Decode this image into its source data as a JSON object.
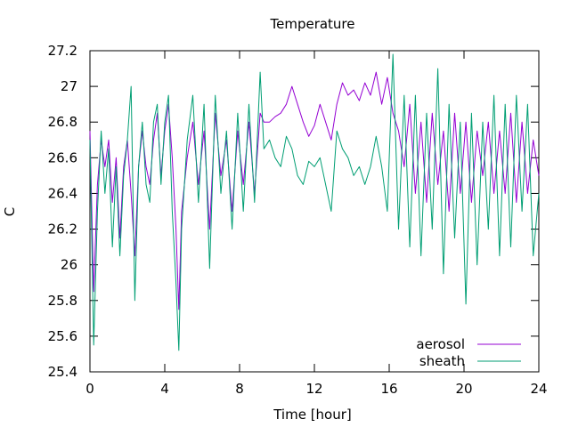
{
  "chart_data": {
    "type": "line",
    "title": "Temperature",
    "xlabel": "Time [hour]",
    "ylabel": "C",
    "xlim": [
      0,
      24
    ],
    "ylim": [
      25.4,
      27.2
    ],
    "xticks": [
      0,
      4,
      8,
      12,
      16,
      20,
      24
    ],
    "yticks": [
      25.4,
      25.6,
      25.8,
      26,
      26.2,
      26.4,
      26.6,
      26.8,
      27,
      27.2
    ],
    "grid": false,
    "legend_position": "bottom-right",
    "series": [
      {
        "name": "aerosol",
        "color": "#9400d3",
        "points": [
          [
            0,
            26.75
          ],
          [
            0.2,
            25.85
          ],
          [
            0.4,
            26.45
          ],
          [
            0.6,
            26.7
          ],
          [
            0.8,
            26.55
          ],
          [
            1.0,
            26.7
          ],
          [
            1.2,
            26.35
          ],
          [
            1.4,
            26.6
          ],
          [
            1.6,
            26.15
          ],
          [
            1.8,
            26.55
          ],
          [
            2.0,
            26.7
          ],
          [
            2.2,
            26.4
          ],
          [
            2.4,
            26.05
          ],
          [
            2.6,
            26.55
          ],
          [
            2.8,
            26.75
          ],
          [
            3.0,
            26.55
          ],
          [
            3.2,
            26.45
          ],
          [
            3.4,
            26.7
          ],
          [
            3.6,
            26.85
          ],
          [
            3.8,
            26.5
          ],
          [
            4.0,
            26.75
          ],
          [
            4.2,
            26.9
          ],
          [
            4.4,
            26.6
          ],
          [
            4.6,
            26.2
          ],
          [
            4.75,
            25.75
          ],
          [
            4.9,
            26.3
          ],
          [
            5.2,
            26.6
          ],
          [
            5.5,
            26.8
          ],
          [
            5.8,
            26.45
          ],
          [
            6.1,
            26.75
          ],
          [
            6.4,
            26.2
          ],
          [
            6.7,
            26.85
          ],
          [
            7.0,
            26.5
          ],
          [
            7.3,
            26.7
          ],
          [
            7.6,
            26.3
          ],
          [
            7.9,
            26.75
          ],
          [
            8.2,
            26.45
          ],
          [
            8.5,
            26.8
          ],
          [
            8.8,
            26.4
          ],
          [
            9.1,
            26.85
          ],
          [
            9.3,
            26.8
          ],
          [
            9.6,
            26.8
          ],
          [
            9.9,
            26.83
          ],
          [
            10.2,
            26.85
          ],
          [
            10.5,
            26.9
          ],
          [
            10.8,
            27.0
          ],
          [
            11.1,
            26.9
          ],
          [
            11.4,
            26.8
          ],
          [
            11.7,
            26.72
          ],
          [
            12.0,
            26.78
          ],
          [
            12.3,
            26.9
          ],
          [
            12.6,
            26.8
          ],
          [
            12.9,
            26.7
          ],
          [
            13.2,
            26.9
          ],
          [
            13.5,
            27.02
          ],
          [
            13.8,
            26.95
          ],
          [
            14.1,
            26.98
          ],
          [
            14.4,
            26.92
          ],
          [
            14.7,
            27.02
          ],
          [
            15.0,
            26.95
          ],
          [
            15.3,
            27.08
          ],
          [
            15.6,
            26.9
          ],
          [
            15.9,
            27.05
          ],
          [
            16.2,
            26.85
          ],
          [
            16.5,
            26.75
          ],
          [
            16.8,
            26.55
          ],
          [
            17.1,
            26.9
          ],
          [
            17.4,
            26.4
          ],
          [
            17.7,
            26.8
          ],
          [
            18.0,
            26.35
          ],
          [
            18.3,
            26.85
          ],
          [
            18.6,
            26.45
          ],
          [
            18.9,
            26.75
          ],
          [
            19.2,
            26.3
          ],
          [
            19.5,
            26.85
          ],
          [
            19.8,
            26.4
          ],
          [
            20.1,
            26.8
          ],
          [
            20.4,
            26.35
          ],
          [
            20.7,
            26.75
          ],
          [
            21.0,
            26.5
          ],
          [
            21.3,
            26.8
          ],
          [
            21.6,
            26.4
          ],
          [
            21.9,
            26.75
          ],
          [
            22.2,
            26.4
          ],
          [
            22.5,
            26.85
          ],
          [
            22.8,
            26.35
          ],
          [
            23.1,
            26.8
          ],
          [
            23.4,
            26.4
          ],
          [
            23.7,
            26.7
          ],
          [
            24.0,
            26.5
          ]
        ]
      },
      {
        "name": "sheath",
        "color": "#009e73",
        "points": [
          [
            0,
            26.7
          ],
          [
            0.2,
            25.55
          ],
          [
            0.4,
            26.3
          ],
          [
            0.6,
            26.75
          ],
          [
            0.8,
            26.4
          ],
          [
            1.0,
            26.65
          ],
          [
            1.2,
            26.1
          ],
          [
            1.4,
            26.55
          ],
          [
            1.6,
            26.05
          ],
          [
            1.8,
            26.5
          ],
          [
            2.0,
            26.7
          ],
          [
            2.2,
            27.0
          ],
          [
            2.4,
            25.8
          ],
          [
            2.6,
            26.55
          ],
          [
            2.8,
            26.8
          ],
          [
            3.0,
            26.45
          ],
          [
            3.2,
            26.35
          ],
          [
            3.4,
            26.8
          ],
          [
            3.6,
            26.9
          ],
          [
            3.8,
            26.45
          ],
          [
            4.0,
            26.8
          ],
          [
            4.2,
            26.95
          ],
          [
            4.4,
            26.3
          ],
          [
            4.6,
            25.9
          ],
          [
            4.75,
            25.52
          ],
          [
            4.9,
            26.2
          ],
          [
            5.2,
            26.7
          ],
          [
            5.5,
            26.95
          ],
          [
            5.8,
            26.35
          ],
          [
            6.1,
            26.9
          ],
          [
            6.4,
            25.98
          ],
          [
            6.7,
            26.95
          ],
          [
            7.0,
            26.4
          ],
          [
            7.3,
            26.75
          ],
          [
            7.6,
            26.2
          ],
          [
            7.9,
            26.85
          ],
          [
            8.2,
            26.3
          ],
          [
            8.5,
            26.9
          ],
          [
            8.8,
            26.35
          ],
          [
            9.1,
            27.08
          ],
          [
            9.3,
            26.65
          ],
          [
            9.6,
            26.7
          ],
          [
            9.9,
            26.6
          ],
          [
            10.2,
            26.55
          ],
          [
            10.5,
            26.72
          ],
          [
            10.8,
            26.65
          ],
          [
            11.1,
            26.5
          ],
          [
            11.4,
            26.45
          ],
          [
            11.7,
            26.58
          ],
          [
            12.0,
            26.55
          ],
          [
            12.3,
            26.6
          ],
          [
            12.6,
            26.45
          ],
          [
            12.9,
            26.3
          ],
          [
            13.2,
            26.75
          ],
          [
            13.5,
            26.65
          ],
          [
            13.8,
            26.6
          ],
          [
            14.1,
            26.5
          ],
          [
            14.4,
            26.55
          ],
          [
            14.7,
            26.45
          ],
          [
            15.0,
            26.55
          ],
          [
            15.3,
            26.72
          ],
          [
            15.6,
            26.55
          ],
          [
            15.9,
            26.3
          ],
          [
            16.2,
            27.18
          ],
          [
            16.5,
            26.2
          ],
          [
            16.8,
            26.95
          ],
          [
            17.1,
            26.1
          ],
          [
            17.4,
            26.95
          ],
          [
            17.7,
            26.05
          ],
          [
            18.0,
            26.85
          ],
          [
            18.3,
            26.2
          ],
          [
            18.6,
            27.1
          ],
          [
            18.9,
            25.95
          ],
          [
            19.2,
            26.9
          ],
          [
            19.5,
            26.15
          ],
          [
            19.8,
            26.8
          ],
          [
            20.1,
            25.78
          ],
          [
            20.4,
            26.85
          ],
          [
            20.7,
            26.0
          ],
          [
            21.0,
            26.8
          ],
          [
            21.3,
            26.2
          ],
          [
            21.6,
            26.95
          ],
          [
            21.9,
            26.05
          ],
          [
            22.2,
            26.9
          ],
          [
            22.5,
            26.1
          ],
          [
            22.8,
            26.95
          ],
          [
            23.1,
            26.3
          ],
          [
            23.4,
            26.9
          ],
          [
            23.7,
            26.05
          ],
          [
            24.0,
            26.4
          ]
        ]
      }
    ]
  }
}
